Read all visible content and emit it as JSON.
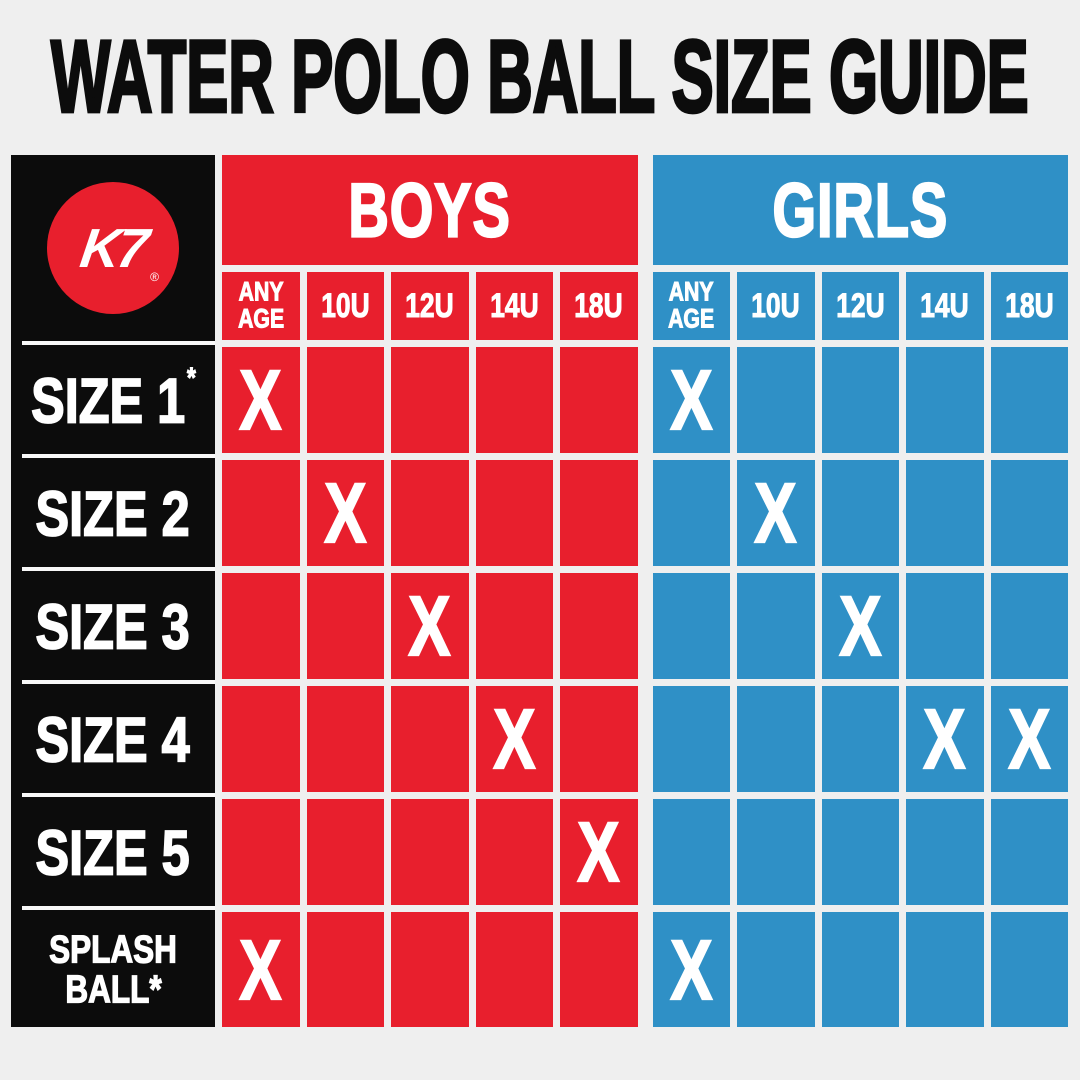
{
  "title": "WATER POLO BALL SIZE GUIDE",
  "logo": {
    "text": "K7",
    "registered": "®"
  },
  "colors": {
    "boys_red": "#e81f2d",
    "girls_blue": "#2f90c6",
    "label_black": "#0c0c0c",
    "background": "#efefef",
    "text_white": "#ffffff"
  },
  "chart_data": {
    "type": "table",
    "title": "WATER POLO BALL SIZE GUIDE",
    "mark_symbol": "X",
    "groups": [
      {
        "name": "BOYS",
        "color": "#e81f2d",
        "columns": [
          "ANY AGE",
          "10U",
          "12U",
          "14U",
          "18U"
        ]
      },
      {
        "name": "GIRLS",
        "color": "#2f90c6",
        "columns": [
          "ANY AGE",
          "10U",
          "12U",
          "14U",
          "18U"
        ]
      }
    ],
    "rows": [
      {
        "label": "SIZE 1",
        "sup": "*",
        "marks": {
          "BOYS": [
            "X",
            "",
            "",
            "",
            ""
          ],
          "GIRLS": [
            "X",
            "",
            "",
            "",
            ""
          ]
        }
      },
      {
        "label": "SIZE 2",
        "marks": {
          "BOYS": [
            "",
            "X",
            "",
            "",
            ""
          ],
          "GIRLS": [
            "",
            "X",
            "",
            "",
            ""
          ]
        }
      },
      {
        "label": "SIZE 3",
        "marks": {
          "BOYS": [
            "",
            "",
            "X",
            "",
            ""
          ],
          "GIRLS": [
            "",
            "",
            "X",
            "",
            ""
          ]
        }
      },
      {
        "label": "SIZE 4",
        "marks": {
          "BOYS": [
            "",
            "",
            "",
            "X",
            ""
          ],
          "GIRLS": [
            "",
            "",
            "",
            "X",
            "X"
          ]
        }
      },
      {
        "label": "SIZE 5",
        "marks": {
          "BOYS": [
            "",
            "",
            "",
            "",
            "X"
          ],
          "GIRLS": [
            "",
            "",
            "",
            "",
            ""
          ]
        }
      },
      {
        "label": "SPLASH BALL*",
        "lines": [
          "SPLASH",
          "BALL*"
        ],
        "marks": {
          "BOYS": [
            "X",
            "",
            "",
            "",
            ""
          ],
          "GIRLS": [
            "X",
            "",
            "",
            "",
            ""
          ]
        }
      }
    ]
  }
}
